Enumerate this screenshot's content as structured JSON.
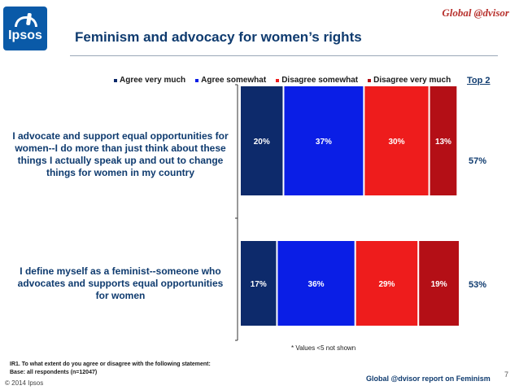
{
  "header": {
    "logo_text": "Ipsos",
    "brand": "Global @dvisor",
    "title": "Feminism and advocacy for women’s rights"
  },
  "colors": {
    "agree_very_much": "#0d2a6b",
    "agree_somewhat": "#0a1ee6",
    "disagree_somewhat": "#ee1c1c",
    "disagree_very_much": "#b40f16",
    "navy_text": "#0f3b6f"
  },
  "chart_data": {
    "type": "bar",
    "orientation": "horizontal",
    "stacked": true,
    "categories": [
      "I advocate and support equal opportunities for women--I do more than just think about these things I actually speak up and out to change things for women in my country",
      "I define myself as a feminist--someone who advocates and supports equal opportunities for women"
    ],
    "series": [
      {
        "name": "Agree very much",
        "values": [
          20,
          17
        ],
        "labels": [
          "20%",
          "17%"
        ]
      },
      {
        "name": "Agree somewhat",
        "values": [
          37,
          36
        ],
        "labels": [
          "37%",
          "36%"
        ]
      },
      {
        "name": "Disagree somewhat",
        "values": [
          30,
          29
        ],
        "labels": [
          "30%",
          "29%"
        ]
      },
      {
        "name": "Disagree very much",
        "values": [
          13,
          19
        ],
        "labels": [
          "13%",
          "19%"
        ]
      }
    ],
    "top2_header": "Top 2",
    "top2": [
      "57%",
      "53%"
    ],
    "xlim": [
      0,
      101
    ],
    "legend_position": "top"
  },
  "note": "* Values <5 not shown",
  "footer": {
    "question": "IR1. To what extent do you agree or disagree with the following statement:",
    "base": "Base: all respondents (n=12047)",
    "source": "Global @dvisor report on Feminism",
    "page": "7",
    "copyright": "© 2014 Ipsos"
  }
}
